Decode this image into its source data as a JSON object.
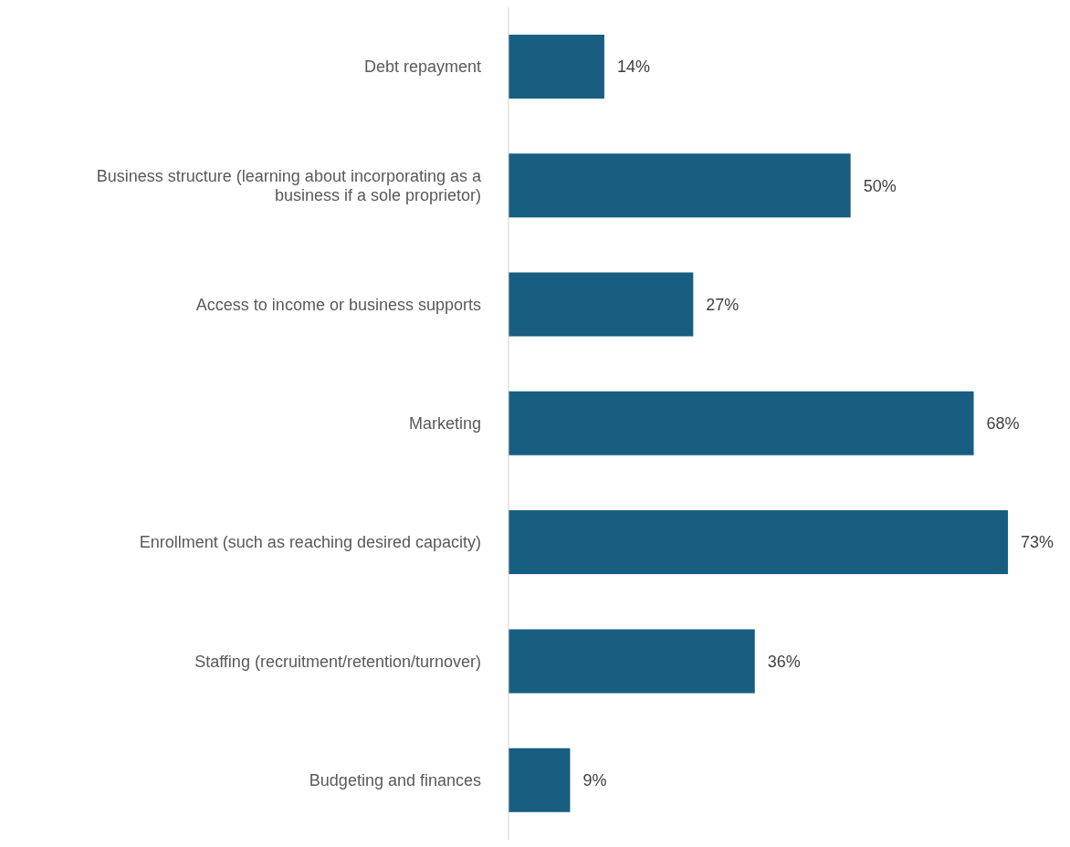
{
  "chart_data": {
    "type": "bar",
    "orientation": "horizontal",
    "categories": [
      "Debt repayment",
      "Business structure (learning about incorporating as a business if a sole proprietor)",
      "Access to income or business supports",
      "Marketing",
      "Enrollment (such as reaching desired capacity)",
      "Staffing (recruitment/retention/turnover)",
      "Budgeting and finances"
    ],
    "values": [
      14,
      50,
      27,
      68,
      73,
      36,
      9
    ],
    "value_labels": [
      "14%",
      "50%",
      "27%",
      "68%",
      "73%",
      "36%",
      "9%"
    ],
    "color": "#175e80"
  }
}
